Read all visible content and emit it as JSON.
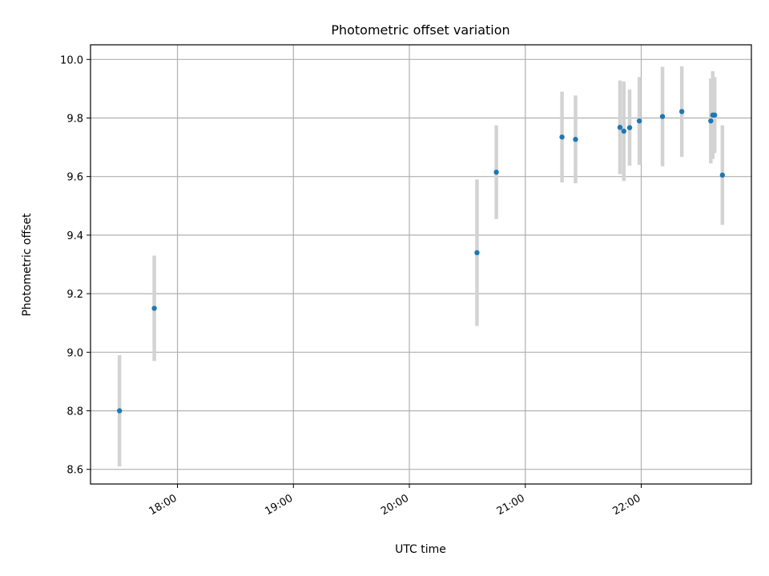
{
  "chart_data": {
    "type": "scatter",
    "title": "Photometric offset variation",
    "xlabel": "UTC time",
    "ylabel": "Photometric offset",
    "x_tick_labels": [
      "18:00",
      "19:00",
      "20:00",
      "21:00",
      "22:00"
    ],
    "y_tick_labels": [
      "8.6",
      "8.8",
      "9.0",
      "9.2",
      "9.4",
      "9.6",
      "9.8",
      "10.0"
    ],
    "xlim": [
      "17:15",
      "22:57"
    ],
    "ylim": [
      8.55,
      10.05
    ],
    "grid": true,
    "colors": {
      "point": "#1f77b4",
      "errorbar": "#d3d3d3"
    },
    "points": [
      {
        "x": "17:30",
        "y": 8.8,
        "yerr": 0.19
      },
      {
        "x": "17:48",
        "y": 9.15,
        "yerr": 0.18
      },
      {
        "x": "20:35",
        "y": 9.34,
        "yerr": 0.25
      },
      {
        "x": "20:45",
        "y": 9.615,
        "yerr": 0.16
      },
      {
        "x": "21:19",
        "y": 9.735,
        "yerr": 0.155
      },
      {
        "x": "21:26",
        "y": 9.727,
        "yerr": 0.15
      },
      {
        "x": "21:49",
        "y": 9.768,
        "yerr": 0.16
      },
      {
        "x": "21:51",
        "y": 9.755,
        "yerr": 0.17
      },
      {
        "x": "21:54",
        "y": 9.767,
        "yerr": 0.13
      },
      {
        "x": "21:59",
        "y": 9.79,
        "yerr": 0.15
      },
      {
        "x": "22:11",
        "y": 9.805,
        "yerr": 0.17
      },
      {
        "x": "22:21",
        "y": 9.822,
        "yerr": 0.155
      },
      {
        "x": "22:36",
        "y": 9.79,
        "yerr": 0.145
      },
      {
        "x": "22:37",
        "y": 9.81,
        "yerr": 0.15
      },
      {
        "x": "22:38",
        "y": 9.81,
        "yerr": 0.13
      },
      {
        "x": "22:42",
        "y": 9.605,
        "yerr": 0.17
      }
    ]
  }
}
